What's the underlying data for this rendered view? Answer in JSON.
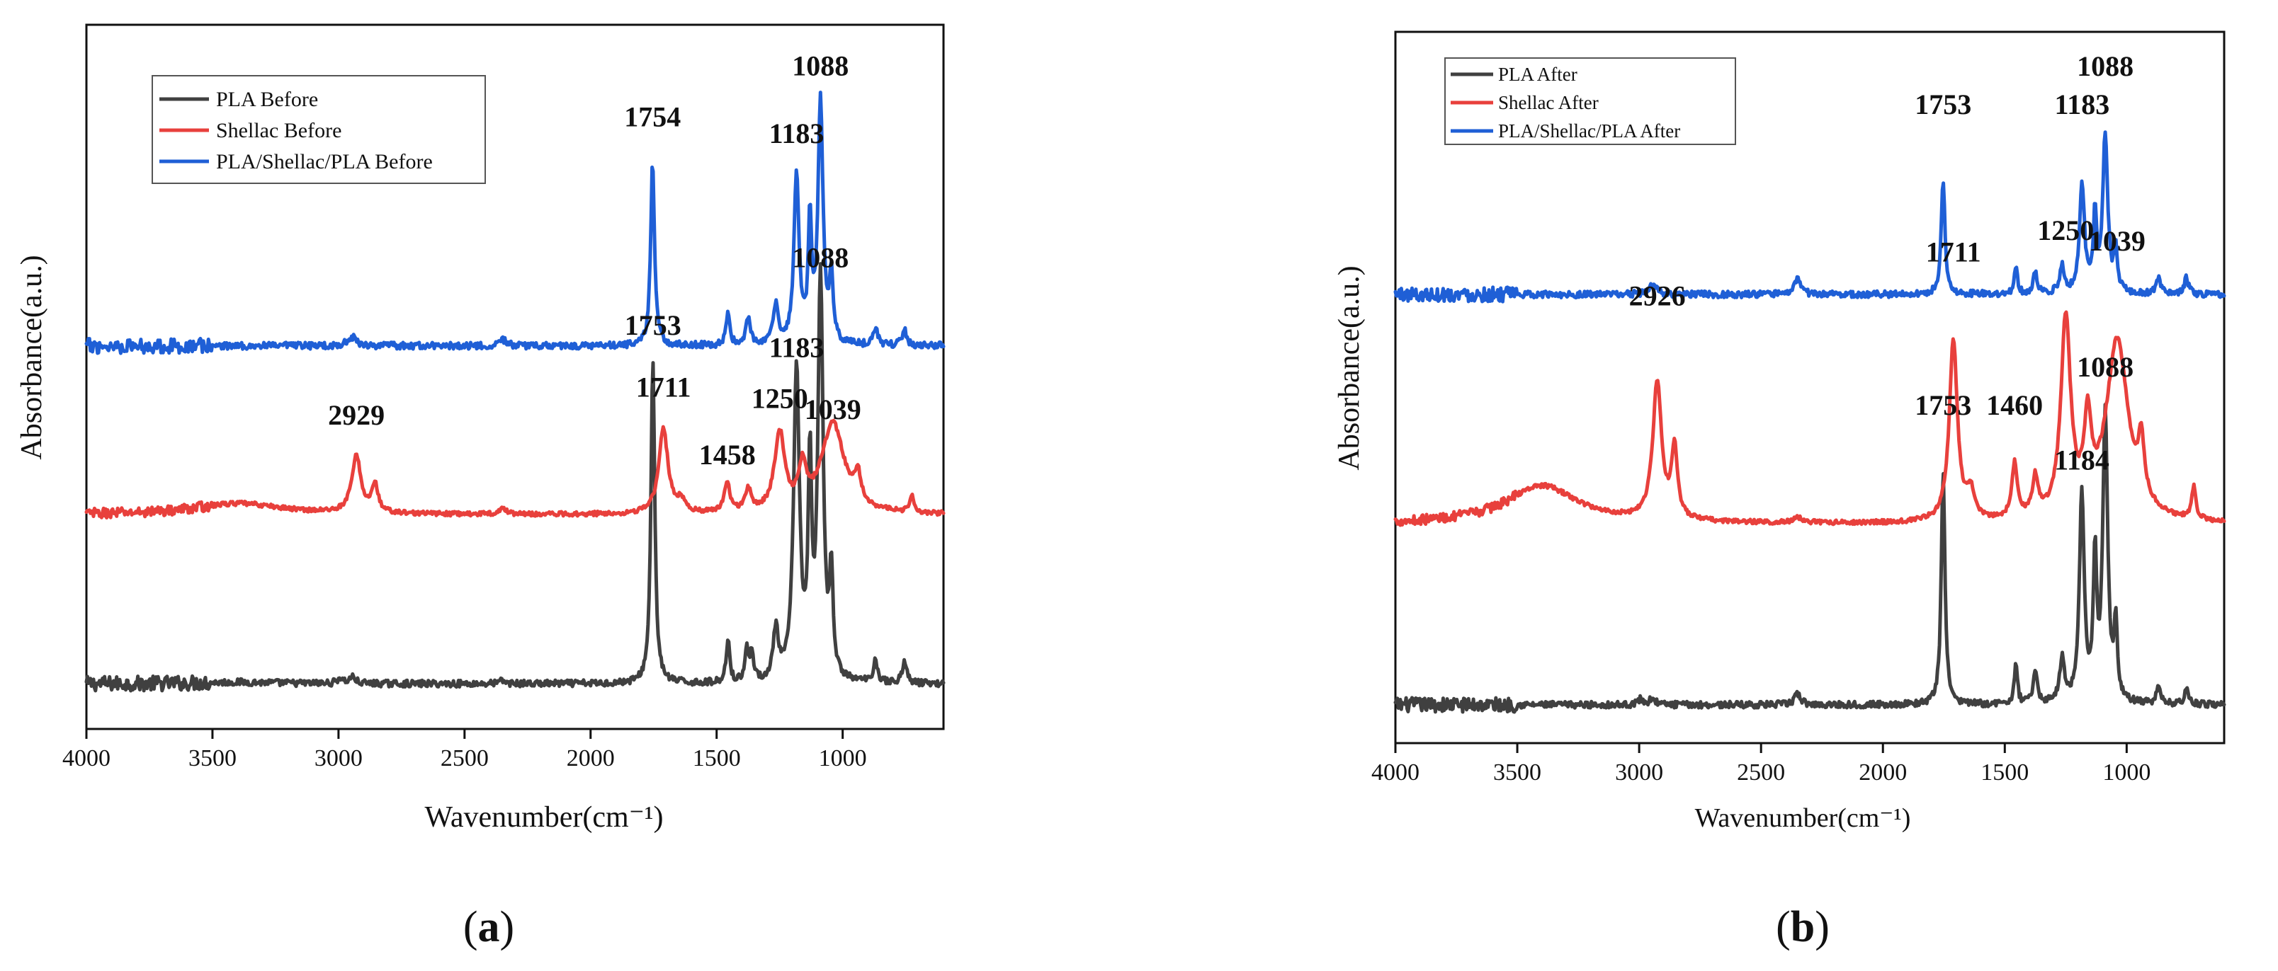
{
  "chart_data": [
    {
      "type": "line",
      "panel_label": "a",
      "xlabel": "Wavenumber(cm⁻¹)",
      "ylabel": "Absorbance(a.u.)",
      "xlim": [
        4000,
        600
      ],
      "xticks": [
        4000,
        3500,
        3000,
        2500,
        2000,
        1500,
        1000
      ],
      "legend": "top-left",
      "series": [
        {
          "name": "PLA Before",
          "color": "#404040",
          "baseline": 0.08,
          "noise": 0.006,
          "bumps": [
            [
              3400,
              0.003,
              200
            ],
            [
              2995,
              0.01,
              12
            ],
            [
              2945,
              0.012,
              14
            ],
            [
              2350,
              0.005,
              15
            ],
            [
              1753,
              0.58,
              9
            ],
            [
              1455,
              0.08,
              8
            ],
            [
              1380,
              0.06,
              8
            ],
            [
              1360,
              0.05,
              8
            ],
            [
              1265,
              0.09,
              12
            ],
            [
              1183,
              0.55,
              14
            ],
            [
              1130,
              0.37,
              8
            ],
            [
              1088,
              0.72,
              12
            ],
            [
              1045,
              0.18,
              8
            ],
            [
              870,
              0.04,
              10
            ],
            [
              755,
              0.04,
              10
            ]
          ]
        },
        {
          "name": "Shellac Before",
          "color": "#e8403c",
          "baseline": 0.38,
          "noise": 0.004,
          "bumps": [
            [
              3400,
              0.02,
              220
            ],
            [
              2929,
              0.1,
              22
            ],
            [
              2855,
              0.05,
              14
            ],
            [
              2350,
              0.01,
              18
            ],
            [
              1711,
              0.15,
              22
            ],
            [
              1640,
              0.02,
              20
            ],
            [
              1458,
              0.05,
              14
            ],
            [
              1375,
              0.04,
              14
            ],
            [
              1250,
              0.14,
              24
            ],
            [
              1160,
              0.07,
              18
            ],
            [
              1039,
              0.16,
              55
            ],
            [
              940,
              0.05,
              15
            ],
            [
              725,
              0.03,
              10
            ]
          ]
        },
        {
          "name": "PLA/Shellac/PLA Before",
          "color": "#1f5fd6",
          "baseline": 0.68,
          "noise": 0.006,
          "bumps": [
            [
              2945,
              0.015,
              22
            ],
            [
              2350,
              0.012,
              15
            ],
            [
              1754,
              0.33,
              9
            ],
            [
              1455,
              0.06,
              8
            ],
            [
              1375,
              0.05,
              10
            ],
            [
              1265,
              0.07,
              12
            ],
            [
              1183,
              0.3,
              12
            ],
            [
              1130,
              0.21,
              8
            ],
            [
              1088,
              0.43,
              12
            ],
            [
              1045,
              0.12,
              8
            ],
            [
              870,
              0.03,
              10
            ],
            [
              755,
              0.03,
              10
            ]
          ]
        }
      ],
      "annotations": [
        {
          "text": "1754",
          "x": 1754,
          "y": 1.07
        },
        {
          "text": "1183",
          "x": 1183,
          "y": 1.04
        },
        {
          "text": "1088",
          "x": 1088,
          "y": 1.16
        },
        {
          "text": "2929",
          "x": 2929,
          "y": 0.54
        },
        {
          "text": "1711",
          "x": 1711,
          "y": 0.59
        },
        {
          "text": "1458",
          "x": 1458,
          "y": 0.47
        },
        {
          "text": "1250",
          "x": 1250,
          "y": 0.57
        },
        {
          "text": "1039",
          "x": 1039,
          "y": 0.55
        },
        {
          "text": "1753",
          "x": 1753,
          "y": 0.7
        },
        {
          "text": "1183",
          "x": 1183,
          "y": 0.66
        },
        {
          "text": "1088",
          "x": 1088,
          "y": 0.82
        }
      ]
    },
    {
      "type": "line",
      "panel_label": "b",
      "xlabel": "Wavenumber(cm⁻¹)",
      "ylabel": "Absorbance(a.u.)",
      "xlim": [
        4000,
        600
      ],
      "xticks": [
        4000,
        3500,
        3000,
        2500,
        2000,
        1500,
        1000
      ],
      "legend": "top-left",
      "series": [
        {
          "name": "PLA After",
          "color": "#404040",
          "baseline": 0.07,
          "noise": 0.006,
          "bumps": [
            [
              2995,
              0.01,
              12
            ],
            [
              2945,
              0.012,
              14
            ],
            [
              2350,
              0.02,
              15
            ],
            [
              1753,
              0.43,
              9
            ],
            [
              1455,
              0.07,
              8
            ],
            [
              1375,
              0.06,
              10
            ],
            [
              1265,
              0.08,
              12
            ],
            [
              1184,
              0.38,
              12
            ],
            [
              1130,
              0.26,
              8
            ],
            [
              1088,
              0.53,
              12
            ],
            [
              1045,
              0.14,
              8
            ],
            [
              870,
              0.03,
              10
            ],
            [
              755,
              0.03,
              10
            ]
          ]
        },
        {
          "name": "Shellac After",
          "color": "#e8403c",
          "baseline": 0.4,
          "noise": 0.004,
          "bumps": [
            [
              3400,
              0.07,
              180
            ],
            [
              2926,
              0.25,
              22
            ],
            [
              2855,
              0.13,
              14
            ],
            [
              2350,
              0.01,
              18
            ],
            [
              1711,
              0.33,
              20
            ],
            [
              1640,
              0.05,
              20
            ],
            [
              1460,
              0.1,
              14
            ],
            [
              1375,
              0.07,
              14
            ],
            [
              1250,
              0.36,
              24
            ],
            [
              1160,
              0.15,
              18
            ],
            [
              1039,
              0.33,
              55
            ],
            [
              940,
              0.1,
              15
            ],
            [
              725,
              0.06,
              10
            ]
          ]
        },
        {
          "name": "PLA/Shellac/PLA After",
          "color": "#1f5fd6",
          "baseline": 0.82,
          "noise": 0.006,
          "bumps": [
            [
              2945,
              0.015,
              22
            ],
            [
              2350,
              0.03,
              15
            ],
            [
              1753,
              0.21,
              9
            ],
            [
              1455,
              0.05,
              8
            ],
            [
              1375,
              0.04,
              10
            ],
            [
              1265,
              0.05,
              12
            ],
            [
              1183,
              0.2,
              12
            ],
            [
              1130,
              0.14,
              8
            ],
            [
              1088,
              0.29,
              12
            ],
            [
              1045,
              0.08,
              8
            ],
            [
              870,
              0.03,
              10
            ],
            [
              755,
              0.03,
              10
            ]
          ]
        }
      ],
      "annotations": [
        {
          "text": "1753",
          "x": 1753,
          "y": 1.15
        },
        {
          "text": "1183",
          "x": 1183,
          "y": 1.15
        },
        {
          "text": "1088",
          "x": 1088,
          "y": 1.22
        },
        {
          "text": "2926",
          "x": 2926,
          "y": 0.8
        },
        {
          "text": "1711",
          "x": 1711,
          "y": 0.88
        },
        {
          "text": "1460",
          "x": 1460,
          "y": 0.6
        },
        {
          "text": "1250",
          "x": 1250,
          "y": 0.92
        },
        {
          "text": "1039",
          "x": 1039,
          "y": 0.9
        },
        {
          "text": "1753",
          "x": 1753,
          "y": 0.6
        },
        {
          "text": "1184",
          "x": 1184,
          "y": 0.5
        },
        {
          "text": "1088",
          "x": 1088,
          "y": 0.67
        }
      ]
    }
  ]
}
